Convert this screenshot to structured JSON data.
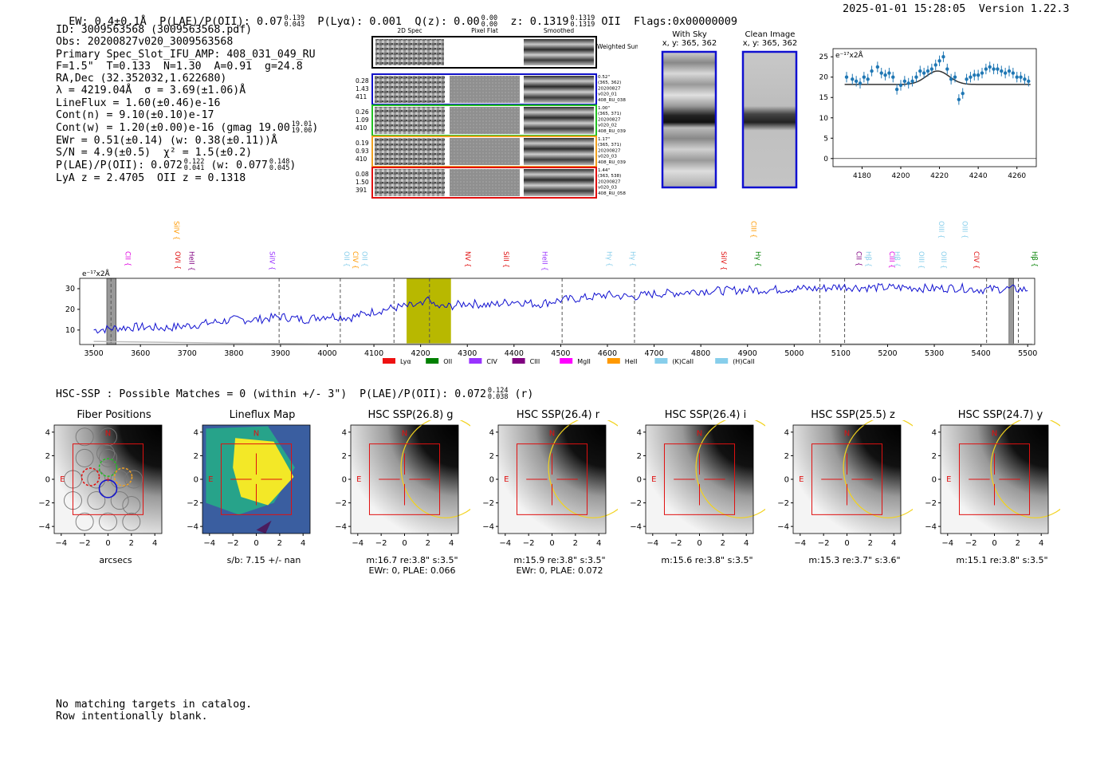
{
  "header": {
    "ew": "EW: 0.4±0.1Å",
    "plae_label": "P(LAE)/P(OII): 0.07",
    "plae_hi": "0.139",
    "plae_lo": "0.043",
    "plya": "P(Lyα): 0.001",
    "qz_label": "Q(z): 0.00",
    "qz_hi": "0.00",
    "qz_lo": "0.00",
    "z_label": "z: 0.1319",
    "z_hi": "0.1319",
    "z_lo": "0.1319",
    "z_line": "OII",
    "flags": "Flags:0x00000009",
    "datetime": "2025-01-01 15:28:05",
    "version": "Version 1.22.3"
  },
  "info": {
    "id": "ID: 3009563568 (3009563568.pdf)",
    "obs": "Obs: 20200827v020_3009563568",
    "slot": "Primary Spec_Slot_IFU_AMP: 408_031_049_RU",
    "params": "F=1.5\"  T=0.133  N=1.30  A=0.91  g=24.8",
    "radec": "RA,Dec (32.352032,1.622680)",
    "lambda": "λ = 4219.04Å  σ = 3.69(±1.06)Å",
    "lineflux": "LineFlux = 1.60(±0.46)e-16",
    "contn": "Cont(n) = 9.10(±0.10)e-17",
    "contw": "Cont(w) = 1.20(±0.00)e-16 (gmag 19.00",
    "contw_hi": "19.01",
    "contw_lo": "19.00",
    "contw_end": ")",
    "ewr": "EWr = 0.51(±0.14) (w: 0.38(±0.11))Å",
    "sn": "S/N = 4.9(±0.5)  χ² = 1.5(±0.2)",
    "plae": "P(LAE)/P(OII): 0.072",
    "plae_hi": "0.122",
    "plae_lo": "0.041",
    "plae_w": "(w: 0.077",
    "plae_w_hi": "0.148",
    "plae_w_lo": "0.045",
    "plae_w_end": ")",
    "lya": "LyA z = 2.4705  OII z = 0.1318"
  },
  "cutouts": {
    "col_2d": "2D Spec",
    "col_flat": "Pixel Flat",
    "col_smooth": "Smoothed",
    "weighted_sum": "Weighted Sum",
    "rows": [
      {
        "vals": [
          "0.28",
          "1.43",
          "411"
        ],
        "meta": [
          "0.52\"",
          "(365, 362)",
          "20200827",
          "v020_01",
          "408_RU_038"
        ],
        "color": "#1010c8"
      },
      {
        "vals": [
          "0.26",
          "1.09",
          "410"
        ],
        "meta": [
          "1.00\"",
          "(365, 371)",
          "20200827",
          "v020_02",
          "408_RU_039"
        ],
        "color": "#22c022"
      },
      {
        "vals": [
          "0.19",
          "0.93",
          "410"
        ],
        "meta": [
          "1.17\"",
          "(365, 371)",
          "20200827",
          "v020_03",
          "408_RU_039"
        ],
        "color": "#f0a020"
      },
      {
        "vals": [
          "0.08",
          "1.50",
          "391"
        ],
        "meta": [
          "1.44\"",
          "(363, 538)",
          "20200827",
          "v020_03",
          "408_RU_058"
        ],
        "color": "#e01010"
      }
    ],
    "with_sky": "With Sky",
    "with_sky_xy": "x, y: 365, 362",
    "clean": "Clean Image",
    "clean_xy": "x, y: 365, 362"
  },
  "chart_data": [
    {
      "type": "scatter",
      "title": "",
      "unit_label": "e⁻¹⁷x2Å",
      "xlim": [
        4165,
        4270
      ],
      "ylim": [
        -2,
        27
      ],
      "xticks": [
        4180,
        4200,
        4220,
        4240,
        4260
      ],
      "yticks": [
        0,
        5,
        10,
        15,
        20,
        25
      ],
      "x": [
        4172,
        4175,
        4177,
        4179,
        4181,
        4183,
        4185,
        4188,
        4190,
        4192,
        4194,
        4196,
        4198,
        4200,
        4202,
        4204,
        4206,
        4208,
        4210,
        4212,
        4214,
        4216,
        4218,
        4220,
        4222,
        4224,
        4226,
        4228,
        4230,
        4232,
        4234,
        4236,
        4238,
        4240,
        4242,
        4244,
        4246,
        4248,
        4250,
        4252,
        4254,
        4256,
        4258,
        4260,
        4262,
        4264,
        4266
      ],
      "y": [
        20,
        19.5,
        19,
        18.5,
        20,
        19.5,
        21.5,
        22.5,
        21,
        20.5,
        21,
        20,
        17,
        18,
        19,
        18.5,
        19,
        20,
        21.5,
        21,
        21.5,
        22,
        23,
        24,
        25,
        22,
        19.5,
        20,
        14.5,
        16,
        19.5,
        20,
        20.5,
        20.5,
        21,
        22,
        22.5,
        22,
        22,
        21.5,
        21,
        21.5,
        21,
        20,
        20,
        19.5,
        19
      ],
      "fit": {
        "continuum": 18.2,
        "center": 4219.04,
        "sigma": 3.69,
        "amp": 3.3
      }
    },
    {
      "type": "line",
      "unit_label": "e⁻¹⁷x2Å",
      "xlim": [
        3470,
        5515
      ],
      "ylim": [
        3,
        35
      ],
      "xticks": [
        3500,
        3600,
        3700,
        3800,
        3900,
        4000,
        4100,
        4200,
        4300,
        4400,
        4500,
        4600,
        4700,
        4800,
        4900,
        5000,
        5100,
        5200,
        5300,
        5400,
        5500
      ],
      "yticks": [
        10,
        20,
        30
      ],
      "highlight_band": [
        4170,
        4265
      ],
      "dashed_lines": [
        3537,
        3897,
        4028,
        4143,
        4219,
        4503,
        4658,
        5055,
        5108,
        5412,
        5480
      ],
      "gray_bars": [
        [
          3528,
          3548
        ],
        [
          5460,
          5470
        ]
      ],
      "series_anchor_x": [
        3500,
        3550,
        3600,
        3650,
        3700,
        3750,
        3800,
        3850,
        3900,
        3950,
        4000,
        4050,
        4100,
        4150,
        4200,
        4250,
        4300,
        4350,
        4400,
        4450,
        4500,
        4550,
        4600,
        4650,
        4700,
        4750,
        4800,
        4850,
        4900,
        4950,
        5000,
        5050,
        5100,
        5150,
        5200,
        5250,
        5300,
        5350,
        5400,
        5450,
        5500
      ],
      "series_anchor_y": [
        10,
        11,
        11.5,
        11,
        12,
        13.5,
        15,
        15,
        16.5,
        15,
        17,
        16,
        19,
        21,
        22,
        21,
        23,
        22,
        24,
        22.5,
        24.5,
        25.5,
        27,
        26,
        27.5,
        28,
        29,
        29,
        29.5,
        29.5,
        30,
        30,
        31,
        30.5,
        30.5,
        30.5,
        30,
        30.5,
        29.5,
        30,
        29.5
      ],
      "lines": [
        {
          "label": "CII",
          "x": 3563,
          "color": "#e000e0",
          "row": "low"
        },
        {
          "label": "SiIV",
          "x": 3667,
          "color": "#ff9900",
          "row": "high"
        },
        {
          "label": "OVI",
          "x": 3670,
          "color": "#e01010",
          "row": "low"
        },
        {
          "label": "HeII",
          "x": 3700,
          "color": "#800080",
          "row": "low"
        },
        {
          "label": "SiIV",
          "x": 3872,
          "color": "#9933ff",
          "row": "low"
        },
        {
          "label": "OII",
          "x": 4032,
          "color": "#87ceeb",
          "row": "low"
        },
        {
          "label": "CIV",
          "x": 4050,
          "color": "#ff9900",
          "row": "low"
        },
        {
          "label": "OII",
          "x": 4070,
          "color": "#87ceeb",
          "row": "low"
        },
        {
          "label": "NV",
          "x": 4291,
          "color": "#e01010",
          "row": "low"
        },
        {
          "label": "SiII",
          "x": 4373,
          "color": "#e01010",
          "row": "low"
        },
        {
          "label": "HeII",
          "x": 4456,
          "color": "#9933ff",
          "row": "low"
        },
        {
          "label": "Hγ",
          "x": 4594,
          "color": "#87ceeb",
          "row": "low"
        },
        {
          "label": "Hγ",
          "x": 4644,
          "color": "#87ceeb",
          "row": "low"
        },
        {
          "label": "SiIV",
          "x": 4839,
          "color": "#e01010",
          "row": "low"
        },
        {
          "label": "CIII",
          "x": 4903,
          "color": "#ff9900",
          "row": "high"
        },
        {
          "label": "Hγ",
          "x": 4912,
          "color": "#008000",
          "row": "low"
        },
        {
          "label": "CII",
          "x": 5128,
          "color": "#800080",
          "row": "low"
        },
        {
          "label": "Hβ",
          "x": 5149,
          "color": "#87ceeb",
          "row": "low"
        },
        {
          "label": "CIII",
          "x": 5199,
          "color": "#e000e0",
          "row": "low"
        },
        {
          "label": "Hβ",
          "x": 5210,
          "color": "#87ceeb",
          "row": "low"
        },
        {
          "label": "OIII",
          "x": 5262,
          "color": "#87ceeb",
          "row": "low"
        },
        {
          "label": "OIII",
          "x": 5305,
          "color": "#87ceeb",
          "row": "high"
        },
        {
          "label": "OIII",
          "x": 5310,
          "color": "#87ceeb",
          "row": "low"
        },
        {
          "label": "OIII",
          "x": 5355,
          "color": "#87ceeb",
          "row": "high"
        },
        {
          "label": "CIV",
          "x": 5380,
          "color": "#e01010",
          "row": "low"
        },
        {
          "label": "Hβ",
          "x": 5505,
          "color": "#008000",
          "row": "low"
        }
      ],
      "legend": [
        {
          "label": "Lyα",
          "color": "#ee1111"
        },
        {
          "label": "OII",
          "color": "#008000"
        },
        {
          "label": "CIV",
          "color": "#9933ff"
        },
        {
          "label": "CIII",
          "color": "#800080"
        },
        {
          "label": "MgII",
          "color": "#ff00ff"
        },
        {
          "label": "HeII",
          "color": "#ff9900"
        },
        {
          "label": "(K)CaII",
          "color": "#87ceeb"
        },
        {
          "label": "(H)CaII",
          "color": "#87ceeb"
        }
      ]
    }
  ],
  "hsc": {
    "summary": "HSC-SSP : Possible Matches = 0 (within +/- 3\")  P(LAE)/P(OII): 0.072",
    "summary_hi": "0.124",
    "summary_lo": "0.038",
    "summary_end": "(r)",
    "panels": [
      {
        "title": "Fiber Positions",
        "cap1": "arcsecs",
        "cap2": ""
      },
      {
        "title": "Lineflux Map",
        "cap1": "s/b: 7.15 +/- nan",
        "cap2": ""
      },
      {
        "title": "HSC SSP(26.8) g",
        "cap1": "m:16.7  re:3.8\"  s:3.5\"",
        "cap2": "EWr: 0, PLAE: 0.066"
      },
      {
        "title": "HSC SSP(26.4) r",
        "cap1": "m:15.9  re:3.8\"  s:3.5\"",
        "cap2": "EWr: 0, PLAE: 0.072"
      },
      {
        "title": "HSC SSP(26.4) i",
        "cap1": "m:15.6  re:3.8\"  s:3.5\"",
        "cap2": ""
      },
      {
        "title": "HSC SSP(25.5) z",
        "cap1": "m:15.3  re:3.7\"  s:3.6\"",
        "cap2": ""
      },
      {
        "title": "HSC SSP(24.7) y",
        "cap1": "m:15.1  re:3.8\"  s:3.5\"",
        "cap2": ""
      }
    ],
    "axis_ticks": [
      "−4",
      "−2",
      "0",
      "2",
      "4"
    ],
    "north": "N",
    "east": "E"
  },
  "footer": {
    "line1": "No matching targets in catalog.",
    "line2": "Row intentionally blank."
  }
}
